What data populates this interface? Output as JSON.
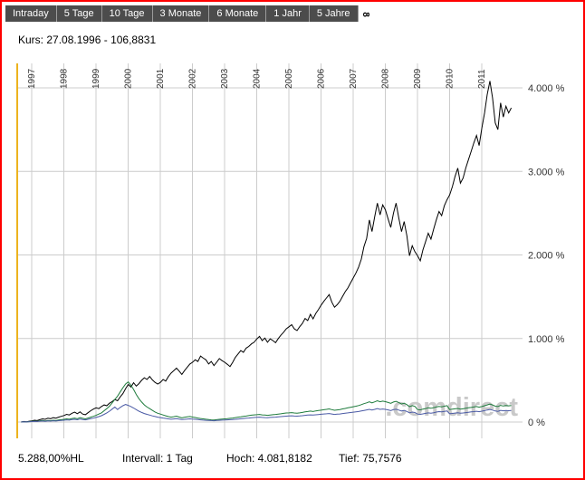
{
  "colors": {
    "border": "#ff0000",
    "tabbar_bg": "#4c4c4c",
    "gridline": "#cccccc",
    "axis_text": "#333333",
    "watermark": "#c9c9c9",
    "start_marker": "#edb21c"
  },
  "tabs": {
    "items": [
      {
        "label": "Intraday"
      },
      {
        "label": "5 Tage"
      },
      {
        "label": "10 Tage"
      },
      {
        "label": "3 Monate"
      },
      {
        "label": "6 Monate"
      },
      {
        "label": "1 Jahr"
      },
      {
        "label": "5 Jahre"
      },
      {
        "label": "8",
        "selected": true
      }
    ]
  },
  "kurs_line": "Kurs: 27.08.1996 - 106,8831",
  "watermark": ".comdirect",
  "footer": {
    "change": "5.288,00%HL",
    "interval": "Intervall: 1 Tag",
    "high": "Hoch: 4.081,8182",
    "low": "Tief: 75,7576"
  },
  "chart_data": {
    "type": "line",
    "title": "",
    "xlabel": "",
    "ylabel": "",
    "grid": true,
    "legend": "none",
    "ylim": [
      -200,
      4300
    ],
    "x_axis": {
      "years": [
        "1997",
        "1998",
        "1999",
        "2000",
        "2001",
        "2002",
        "2003",
        "2004",
        "2005",
        "2006",
        "2007",
        "2008",
        "2009",
        "2010",
        "2011"
      ]
    },
    "y_axis": {
      "side": "right",
      "ticks": [
        {
          "value": 0,
          "label": "0 %"
        },
        {
          "value": 1000,
          "label": "1.000 %"
        },
        {
          "value": 2000,
          "label": "2.000 %"
        },
        {
          "value": 3000,
          "label": "3.000 %"
        },
        {
          "value": 4000,
          "label": "4.000 %"
        }
      ]
    },
    "start_marker_x": 1996.55,
    "series": [
      {
        "name": "main-instrument",
        "color": "#000000",
        "x_start": 1996.67,
        "x_step": 0.08333,
        "values": [
          0,
          6,
          3,
          10,
          14,
          22,
          17,
          28,
          38,
          32,
          45,
          40,
          52,
          47,
          58,
          68,
          78,
          92,
          85,
          105,
          118,
          100,
          122,
          95,
          88,
          112,
          135,
          155,
          170,
          160,
          185,
          205,
          195,
          225,
          245,
          270,
          255,
          300,
          340,
          400,
          450,
          420,
          470,
          430,
          460,
          500,
          530,
          510,
          545,
          505,
          475,
          455,
          475,
          510,
          490,
          545,
          585,
          615,
          645,
          610,
          570,
          615,
          655,
          695,
          715,
          745,
          725,
          790,
          765,
          745,
          695,
          725,
          675,
          715,
          760,
          735,
          715,
          690,
          665,
          715,
          775,
          815,
          855,
          835,
          885,
          905,
          935,
          955,
          995,
          1025,
          975,
          1005,
          955,
          995,
          975,
          950,
          1000,
          1040,
          1075,
          1115,
          1140,
          1165,
          1115,
          1095,
          1140,
          1180,
          1240,
          1215,
          1290,
          1235,
          1300,
          1345,
          1400,
          1445,
          1485,
          1525,
          1435,
          1375,
          1405,
          1445,
          1505,
          1560,
          1605,
          1665,
          1725,
          1785,
          1855,
          1950,
          2100,
          2200,
          2420,
          2280,
          2460,
          2620,
          2480,
          2600,
          2540,
          2430,
          2330,
          2500,
          2620,
          2440,
          2280,
          2400,
          2230,
          1990,
          2110,
          2040,
          1990,
          1930,
          2060,
          2160,
          2260,
          2190,
          2310,
          2420,
          2520,
          2470,
          2590,
          2660,
          2720,
          2820,
          2940,
          3040,
          2860,
          2920,
          3040,
          3140,
          3240,
          3340,
          3430,
          3310,
          3520,
          3700,
          3920,
          4081,
          3880,
          3580,
          3500,
          3820,
          3650,
          3780,
          3700,
          3760
        ]
      },
      {
        "name": "benchmark-green",
        "color": "#1e7b3c",
        "x_start": 1996.67,
        "x_step": 0.08333,
        "values": [
          0,
          3,
          1,
          5,
          8,
          12,
          9,
          15,
          18,
          14,
          20,
          16,
          22,
          18,
          24,
          28,
          32,
          38,
          34,
          42,
          48,
          40,
          52,
          44,
          38,
          48,
          58,
          68,
          80,
          95,
          110,
          135,
          160,
          190,
          230,
          270,
          310,
          360,
          410,
          455,
          480,
          440,
          390,
          330,
          280,
          240,
          205,
          180,
          160,
          140,
          120,
          105,
          95,
          85,
          75,
          65,
          58,
          64,
          70,
          60,
          50,
          56,
          62,
          66,
          60,
          54,
          48,
          42,
          38,
          34,
          30,
          26,
          24,
          28,
          33,
          36,
          38,
          40,
          44,
          48,
          53,
          58,
          63,
          68,
          72,
          77,
          82,
          86,
          88,
          91,
          86,
          83,
          80,
          85,
          88,
          91,
          95,
          99,
          104,
          108,
          110,
          113,
          108,
          105,
          110,
          115,
          121,
          126,
          131,
          126,
          133,
          138,
          142,
          147,
          152,
          157,
          148,
          141,
          145,
          150,
          157,
          163,
          170,
          177,
          183,
          190,
          197,
          208,
          220,
          230,
          242,
          230,
          242,
          255,
          243,
          250,
          244,
          234,
          224,
          240,
          248,
          232,
          216,
          226,
          208,
          184,
          196,
          188,
          150,
          145,
          155,
          162,
          170,
          165,
          172,
          180,
          186,
          182,
          190,
          196,
          150,
          154,
          158,
          163,
          155,
          158,
          165,
          170,
          175,
          180,
          185,
          178,
          185,
          195,
          205,
          215,
          205,
          190,
          185,
          200,
          192,
          198,
          194,
          198
        ]
      },
      {
        "name": "benchmark-blue",
        "color": "#4a5aa5",
        "x_start": 1996.67,
        "x_step": 0.08333,
        "values": [
          0,
          2,
          1,
          3,
          5,
          8,
          6,
          10,
          12,
          9,
          14,
          11,
          15,
          12,
          16,
          19,
          22,
          26,
          23,
          29,
          33,
          27,
          36,
          30,
          26,
          33,
          40,
          47,
          55,
          65,
          76,
          92,
          110,
          130,
          155,
          180,
          150,
          175,
          195,
          210,
          200,
          185,
          168,
          148,
          130,
          115,
          102,
          92,
          83,
          74,
          66,
          58,
          53,
          48,
          43,
          38,
          34,
          37,
          40,
          35,
          30,
          33,
          36,
          38,
          35,
          32,
          29,
          26,
          23,
          21,
          19,
          17,
          15,
          18,
          21,
          23,
          24,
          26,
          28,
          30,
          33,
          36,
          39,
          42,
          45,
          48,
          51,
          54,
          56,
          58,
          55,
          53,
          52,
          55,
          57,
          59,
          62,
          65,
          68,
          71,
          73,
          75,
          72,
          70,
          73,
          76,
          80,
          83,
          86,
          83,
          87,
          90,
          93,
          96,
          99,
          102,
          96,
          91,
          94,
          97,
          102,
          106,
          110,
          114,
          118,
          122,
          126,
          132,
          139,
          145,
          152,
          144,
          152,
          160,
          152,
          156,
          152,
          145,
          138,
          148,
          153,
          143,
          132,
          139,
          127,
          111,
          119,
          114,
          95,
          92,
          98,
          104,
          110,
          106,
          112,
          119,
          125,
          121,
          128,
          132,
          100,
          103,
          107,
          111,
          105,
          108,
          113,
          117,
          121,
          125,
          129,
          124,
          130,
          137,
          144,
          151,
          143,
          132,
          128,
          140,
          134,
          139,
          136,
          139
        ]
      }
    ]
  }
}
